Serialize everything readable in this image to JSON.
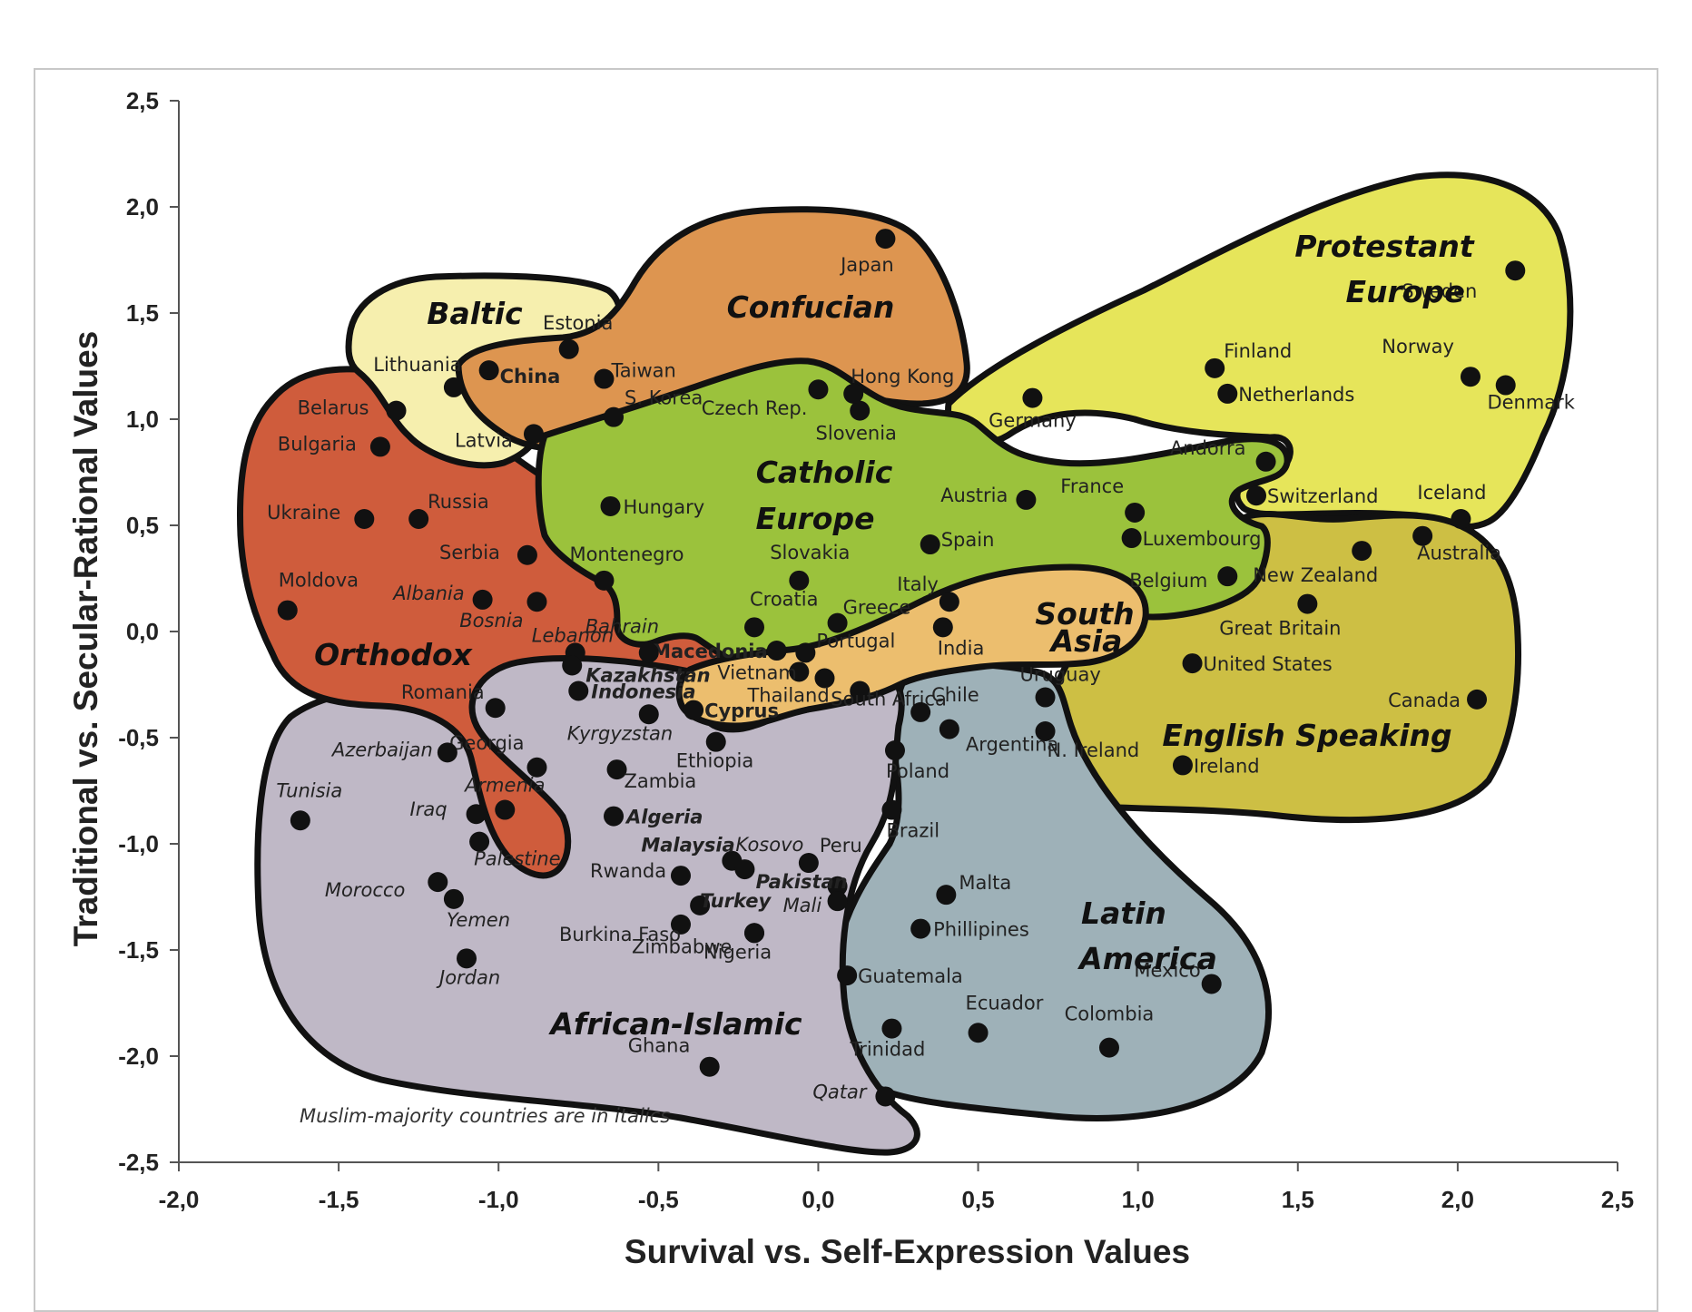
{
  "chart_data": {
    "type": "scatter",
    "xlabel": "Survival vs. Self-Expression Values",
    "ylabel": "Traditional vs. Secular-Rational Values",
    "xlim": [
      -2.0,
      2.5
    ],
    "ylim": [
      -2.5,
      2.5
    ],
    "x_ticks": [
      "-2,0",
      "-1,5",
      "-1,0",
      "-0,5",
      "0,0",
      "0,5",
      "1,0",
      "1,5",
      "2,0",
      "2,5"
    ],
    "y_ticks": [
      "2,5",
      "2,0",
      "1,5",
      "1,0",
      "0,5",
      "0,0",
      "-0,5",
      "-1,0",
      "-1,5",
      "-2,0",
      "-2,5"
    ],
    "grid": false,
    "note": "Muslim-majority countries are in italics",
    "regions": [
      {
        "name": "Protestant Europe",
        "color": "#e6e55a"
      },
      {
        "name": "English Speaking",
        "color": "#cdbf44"
      },
      {
        "name": "Latin America",
        "color": "#9eb1b8"
      },
      {
        "name": "African-Islamic",
        "color": "#bfb8c6"
      },
      {
        "name": "Orthodox",
        "color": "#cf5c3c"
      },
      {
        "name": "Baltic",
        "color": "#f6efae"
      },
      {
        "name": "Confucian",
        "color": "#dd9550"
      },
      {
        "name": "Catholic Europe",
        "color": "#9bc23c"
      },
      {
        "name": "South Asia",
        "color": "#ecbe6e"
      }
    ],
    "region_labels": [
      {
        "text": "Protestant",
        "region": "Protestant Europe"
      },
      {
        "text": "Europe",
        "region": "Protestant Europe"
      },
      {
        "text": "English Speaking",
        "region": "English Speaking"
      },
      {
        "text": "Latin",
        "region": "Latin America"
      },
      {
        "text": "America",
        "region": "Latin America"
      },
      {
        "text": "African-Islamic",
        "region": "African-Islamic"
      },
      {
        "text": "Orthodox",
        "region": "Orthodox"
      },
      {
        "text": "Baltic",
        "region": "Baltic"
      },
      {
        "text": "Confucian",
        "region": "Confucian"
      },
      {
        "text": "Catholic",
        "region": "Catholic Europe"
      },
      {
        "text": "Europe",
        "region": "Catholic Europe"
      },
      {
        "text": "South",
        "region": "South Asia"
      },
      {
        "text": "Asia",
        "region": "South Asia"
      }
    ],
    "points": [
      {
        "label": "Sweden",
        "x": 2.18,
        "y": 1.7
      },
      {
        "label": "Norway",
        "x": 2.04,
        "y": 1.2
      },
      {
        "label": "Denmark",
        "x": 2.15,
        "y": 1.16
      },
      {
        "label": "Finland",
        "x": 1.24,
        "y": 1.24
      },
      {
        "label": "Netherlands",
        "x": 1.28,
        "y": 1.12
      },
      {
        "label": "Germany",
        "x": 0.67,
        "y": 1.1
      },
      {
        "label": "Switzerland",
        "x": 1.37,
        "y": 0.64
      },
      {
        "label": "Iceland",
        "x": 2.01,
        "y": 0.53
      },
      {
        "label": "Andorra",
        "x": 1.4,
        "y": 0.8
      },
      {
        "label": "Australia",
        "x": 1.89,
        "y": 0.45
      },
      {
        "label": "New Zealand",
        "x": 1.7,
        "y": 0.38
      },
      {
        "label": "Great Britain",
        "x": 1.53,
        "y": 0.13
      },
      {
        "label": "United States",
        "x": 1.17,
        "y": -0.15
      },
      {
        "label": "Canada",
        "x": 2.06,
        "y": -0.32
      },
      {
        "label": "Ireland",
        "x": 1.14,
        "y": -0.63
      },
      {
        "label": "N. Ireland",
        "x": 0.71,
        "y": -0.47
      },
      {
        "label": "France",
        "x": 0.99,
        "y": 0.56
      },
      {
        "label": "Luxembourg",
        "x": 0.98,
        "y": 0.44
      },
      {
        "label": "Belgium",
        "x": 1.28,
        "y": 0.26
      },
      {
        "label": "Austria",
        "x": 0.65,
        "y": 0.62
      },
      {
        "label": "Spain",
        "x": 0.35,
        "y": 0.41
      },
      {
        "label": "Italy",
        "x": 0.41,
        "y": 0.14
      },
      {
        "label": "Czech Rep.",
        "x": 0.0,
        "y": 1.14
      },
      {
        "label": "Slovenia",
        "x": 0.13,
        "y": 1.04
      },
      {
        "label": "Hungary",
        "x": -0.65,
        "y": 0.59
      },
      {
        "label": "Slovakia",
        "x": -0.06,
        "y": 0.24
      },
      {
        "label": "Croatia",
        "x": -0.2,
        "y": 0.02
      },
      {
        "label": "Greece",
        "x": 0.06,
        "y": 0.04
      },
      {
        "label": "Portugal",
        "x": -0.04,
        "y": -0.1
      },
      {
        "label": "Japan",
        "x": 0.21,
        "y": 1.85
      },
      {
        "label": "Hong Kong",
        "x": 0.11,
        "y": 1.12
      },
      {
        "label": "Taiwan",
        "x": -0.67,
        "y": 1.19
      },
      {
        "label": "S. Korea",
        "x": -0.64,
        "y": 1.01
      },
      {
        "label": "China",
        "x": -1.03,
        "y": 1.23
      },
      {
        "label": "Estonia",
        "x": -0.78,
        "y": 1.33
      },
      {
        "label": "Lithuania",
        "x": -1.14,
        "y": 1.15
      },
      {
        "label": "Latvia",
        "x": -0.89,
        "y": 0.93
      },
      {
        "label": "Belarus",
        "x": -1.32,
        "y": 1.04
      },
      {
        "label": "Bulgaria",
        "x": -1.37,
        "y": 0.87
      },
      {
        "label": "Ukraine",
        "x": -1.42,
        "y": 0.53
      },
      {
        "label": "Russia",
        "x": -1.25,
        "y": 0.53
      },
      {
        "label": "Serbia",
        "x": -0.91,
        "y": 0.36
      },
      {
        "label": "Montenegro",
        "x": -0.67,
        "y": 0.24
      },
      {
        "label": "Moldova",
        "x": -1.66,
        "y": 0.1
      },
      {
        "label": "Albania",
        "x": -1.05,
        "y": 0.15
      },
      {
        "label": "Bosnia",
        "x": -0.88,
        "y": 0.14
      },
      {
        "label": "Macedonia",
        "x": -0.13,
        "y": -0.09
      },
      {
        "label": "Romania",
        "x": -1.01,
        "y": -0.36
      },
      {
        "label": "Georgia",
        "x": -0.88,
        "y": -0.64
      },
      {
        "label": "Armenia",
        "x": -0.98,
        "y": -0.84
      },
      {
        "label": "Azerbaijan",
        "x": -1.16,
        "y": -0.57
      },
      {
        "label": "Tunisia",
        "x": -1.62,
        "y": -0.89
      },
      {
        "label": "Iraq",
        "x": -1.07,
        "y": -0.86
      },
      {
        "label": "Palestine",
        "x": -1.06,
        "y": -0.99
      },
      {
        "label": "Morocco",
        "x": -1.19,
        "y": -1.18
      },
      {
        "label": "Yemen",
        "x": -1.14,
        "y": -1.26
      },
      {
        "label": "Jordan",
        "x": -1.1,
        "y": -1.54
      },
      {
        "label": "Lebanon",
        "x": -0.76,
        "y": -0.1
      },
      {
        "label": "Kazakhstan",
        "x": -0.77,
        "y": -0.16
      },
      {
        "label": "Indonesia",
        "x": -0.75,
        "y": -0.28
      },
      {
        "label": "Bahrain",
        "x": -0.53,
        "y": -0.1
      },
      {
        "label": "Kyrgyzstan",
        "x": -0.53,
        "y": -0.39
      },
      {
        "label": "Zambia",
        "x": -0.63,
        "y": -0.65
      },
      {
        "label": "Algeria",
        "x": -0.64,
        "y": -0.87
      },
      {
        "label": "Ethiopia",
        "x": -0.32,
        "y": -0.52
      },
      {
        "label": "Cyprus",
        "x": -0.39,
        "y": -0.37
      },
      {
        "label": "Vietnam",
        "x": -0.06,
        "y": -0.19
      },
      {
        "label": "Thailand",
        "x": 0.02,
        "y": -0.22
      },
      {
        "label": "South Africa",
        "x": 0.13,
        "y": -0.28
      },
      {
        "label": "India",
        "x": 0.39,
        "y": 0.02
      },
      {
        "label": "Malaysia",
        "x": -0.27,
        "y": -1.08
      },
      {
        "label": "Kosovo",
        "x": -0.23,
        "y": -1.12
      },
      {
        "label": "Rwanda",
        "x": -0.43,
        "y": -1.15
      },
      {
        "label": "Turkey",
        "x": -0.37,
        "y": -1.29
      },
      {
        "label": "Burkina Faso",
        "x": -0.43,
        "y": -1.38
      },
      {
        "label": "Zimbabwe",
        "x": -0.2,
        "y": -1.42
      },
      {
        "label": "Nigeria",
        "x": -0.2,
        "y": -1.42
      },
      {
        "label": "Pakistan",
        "x": 0.06,
        "y": -1.2
      },
      {
        "label": "Mali",
        "x": 0.06,
        "y": -1.27
      },
      {
        "label": "Peru",
        "x": -0.03,
        "y": -1.09
      },
      {
        "label": "Ghana",
        "x": -0.34,
        "y": -2.05
      },
      {
        "label": "Qatar",
        "x": 0.21,
        "y": -2.19
      },
      {
        "label": "Chile",
        "x": 0.32,
        "y": -0.38
      },
      {
        "label": "Uruguay",
        "x": 0.71,
        "y": -0.31
      },
      {
        "label": "Argentina",
        "x": 0.41,
        "y": -0.46
      },
      {
        "label": "Poland",
        "x": 0.24,
        "y": -0.56
      },
      {
        "label": "Brazil",
        "x": 0.23,
        "y": -0.84
      },
      {
        "label": "Malta",
        "x": 0.4,
        "y": -1.24
      },
      {
        "label": "Phillipines",
        "x": 0.32,
        "y": -1.4
      },
      {
        "label": "Guatemala",
        "x": 0.09,
        "y": -1.62
      },
      {
        "label": "Mexico",
        "x": 1.23,
        "y": -1.66
      },
      {
        "label": "Ecuador",
        "x": 0.5,
        "y": -1.89
      },
      {
        "label": "Colombia",
        "x": 0.91,
        "y": -1.96
      },
      {
        "label": "Trinidad",
        "x": 0.23,
        "y": -1.87
      }
    ]
  }
}
